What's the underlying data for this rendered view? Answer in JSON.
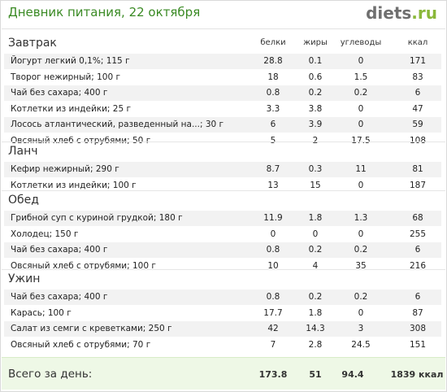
{
  "header": {
    "title": "Дневник питания, 22 октября",
    "logo_base": "diets",
    "logo_tld": ".ru"
  },
  "columns": {
    "protein": "белки",
    "fat": "жиры",
    "carbs": "углеводы",
    "kcal": "ккал"
  },
  "sections": [
    {
      "name": "Завтрак",
      "rows": [
        {
          "item": "Йогурт легкий 0,1%; 115 г",
          "protein": "28.8",
          "fat": "0.1",
          "carbs": "0",
          "kcal": "171"
        },
        {
          "item": "Творог нежирный; 100 г",
          "protein": "18",
          "fat": "0.6",
          "carbs": "1.5",
          "kcal": "83"
        },
        {
          "item": "Чай без сахара; 400 г",
          "protein": "0.8",
          "fat": "0.2",
          "carbs": "0.2",
          "kcal": "6"
        },
        {
          "item": "Котлетки из индейки; 25 г",
          "protein": "3.3",
          "fat": "3.8",
          "carbs": "0",
          "kcal": "47"
        },
        {
          "item": "Лосось атлантический, разведенный на...; 30 г",
          "protein": "6",
          "fat": "3.9",
          "carbs": "0",
          "kcal": "59"
        },
        {
          "item": "Овсяный хлеб с отрубями; 50 г",
          "protein": "5",
          "fat": "2",
          "carbs": "17.5",
          "kcal": "108"
        }
      ]
    },
    {
      "name": "Ланч",
      "rows": [
        {
          "item": "Кефир нежирный; 290 г",
          "protein": "8.7",
          "fat": "0.3",
          "carbs": "11",
          "kcal": "81"
        },
        {
          "item": "Котлетки из индейки; 100 г",
          "protein": "13",
          "fat": "15",
          "carbs": "0",
          "kcal": "187"
        }
      ]
    },
    {
      "name": "Обед",
      "rows": [
        {
          "item": "Грибной суп с куриной грудкой; 180 г",
          "protein": "11.9",
          "fat": "1.8",
          "carbs": "1.3",
          "kcal": "68"
        },
        {
          "item": "Холодец; 150 г",
          "protein": "0",
          "fat": "0",
          "carbs": "0",
          "kcal": "255"
        },
        {
          "item": "Чай без сахара; 400 г",
          "protein": "0.8",
          "fat": "0.2",
          "carbs": "0.2",
          "kcal": "6"
        },
        {
          "item": "Овсяный хлеб с отрубями; 100 г",
          "protein": "10",
          "fat": "4",
          "carbs": "35",
          "kcal": "216"
        }
      ]
    },
    {
      "name": "Ужин",
      "rows": [
        {
          "item": "Чай без сахара; 400 г",
          "protein": "0.8",
          "fat": "0.2",
          "carbs": "0.2",
          "kcal": "6"
        },
        {
          "item": "Карась; 100 г",
          "protein": "17.7",
          "fat": "1.8",
          "carbs": "0",
          "kcal": "87"
        },
        {
          "item": "Салат из семги с креветками; 250 г",
          "protein": "42",
          "fat": "14.3",
          "carbs": "3",
          "kcal": "308"
        },
        {
          "item": "Овсяный хлеб с отрубями; 70 г",
          "protein": "7",
          "fat": "2.8",
          "carbs": "24.5",
          "kcal": "151"
        }
      ]
    }
  ],
  "totals": {
    "label": "Всего за день:",
    "protein": "173.8",
    "fat": "51",
    "carbs": "94.4",
    "kcal": "1839 ккал"
  }
}
